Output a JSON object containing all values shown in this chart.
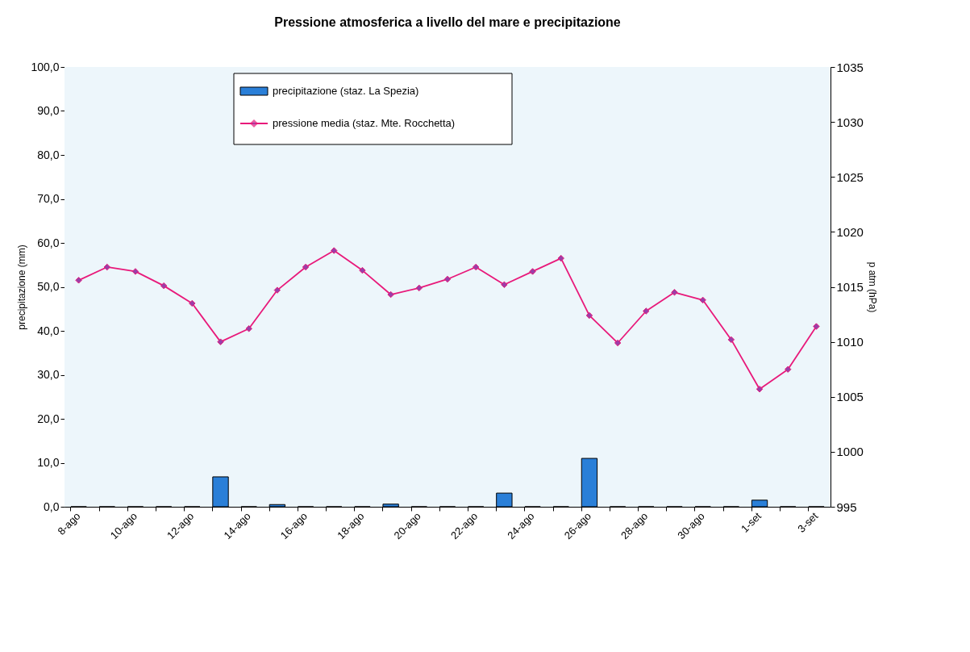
{
  "chart_data": {
    "type": "bar",
    "title": "Pressione atmosferica a livello del mare e precipitazione",
    "categories": [
      "8-ago",
      null,
      "10-ago",
      null,
      "12-ago",
      null,
      "14-ago",
      null,
      "16-ago",
      null,
      "18-ago",
      null,
      "20-ago",
      null,
      "22-ago",
      null,
      "24-ago",
      null,
      "26-ago",
      null,
      "28-ago",
      null,
      "30-ago",
      null,
      "1-set",
      null,
      "3-set"
    ],
    "series": [
      {
        "name": "precipitazione (staz. La Spezia)",
        "color": "#2a7fd8",
        "values": [
          0,
          0,
          0,
          0,
          0,
          6.8,
          0,
          0.5,
          0,
          0,
          0,
          0.6,
          0,
          0,
          0,
          3.1,
          0,
          0,
          11.0,
          0,
          0,
          0,
          0,
          0,
          1.5,
          0,
          0
        ]
      },
      {
        "name": "pressione media (staz. Mte. Rocchetta)",
        "type": "line",
        "axis": "y2",
        "color": "#e8197a",
        "values": [
          1015.6,
          1016.8,
          1016.4,
          1015.1,
          1013.5,
          1010.0,
          1011.2,
          1014.7,
          1016.8,
          1018.3,
          1016.5,
          1014.3,
          1014.9,
          1015.7,
          1016.8,
          1015.2,
          1016.4,
          1017.6,
          1012.4,
          1009.9,
          1012.8,
          1014.5,
          1013.8,
          1010.2,
          1005.7,
          1007.5,
          1011.4
        ]
      }
    ],
    "ylabel": "precipitazione (mm)",
    "y2label": "p atm (hPa)",
    "ylim": [
      0,
      100
    ],
    "yticks": [
      {
        "value": 0,
        "label": "0,0"
      },
      {
        "value": 10,
        "label": "10,0"
      },
      {
        "value": 20,
        "label": "20,0"
      },
      {
        "value": 30,
        "label": "30,0"
      },
      {
        "value": 40,
        "label": "40,0"
      },
      {
        "value": 50,
        "label": "50,0"
      },
      {
        "value": 60,
        "label": "60,0"
      },
      {
        "value": 70,
        "label": "70,0"
      },
      {
        "value": 80,
        "label": "80,0"
      },
      {
        "value": 90,
        "label": "90,0"
      },
      {
        "value": 100,
        "label": "100,0"
      }
    ],
    "y2lim": [
      995,
      1035
    ],
    "y2ticks": [
      995,
      1000,
      1005,
      1010,
      1015,
      1020,
      1025,
      1030,
      1035
    ],
    "marker": "diamond",
    "line_style": "solid",
    "legend": "top"
  }
}
